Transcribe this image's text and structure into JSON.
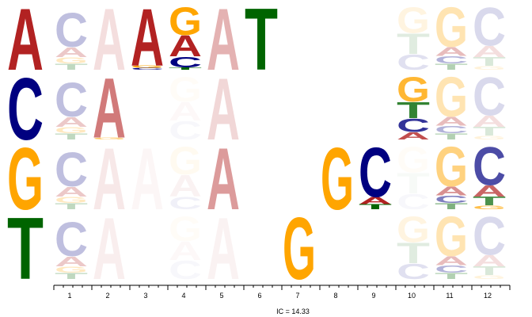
{
  "colors": {
    "A": "#b22222",
    "C": "#000080",
    "G": "#ffa500",
    "T": "#006400",
    "axis": "#000000",
    "background": "#ffffff"
  },
  "chart_data": {
    "type": "sequence-logo",
    "x_ticks": [
      "1",
      "2",
      "3",
      "4",
      "5",
      "6",
      "7",
      "8",
      "9",
      "10",
      "11",
      "12"
    ],
    "ic_label": "IC = 14.33",
    "row_letters": [
      "A",
      "C",
      "G",
      "T"
    ],
    "stacks": [
      [
        [
          {
            "letter": "A",
            "height": 1.0,
            "opacity": 1.0
          }
        ],
        [
          {
            "letter": "C",
            "height": 1.0,
            "opacity": 1.0
          }
        ],
        [
          {
            "letter": "G",
            "height": 1.0,
            "opacity": 1.0
          }
        ],
        [
          {
            "letter": "T",
            "height": 1.0,
            "opacity": 1.0
          }
        ]
      ],
      [
        [
          {
            "letter": "T",
            "height": 0.1,
            "opacity": 0.25
          },
          {
            "letter": "G",
            "height": 0.1,
            "opacity": 0.25
          },
          {
            "letter": "A",
            "height": 0.16,
            "opacity": 0.25
          },
          {
            "letter": "C",
            "height": 0.55,
            "opacity": 0.25
          }
        ],
        [
          {
            "letter": "T",
            "height": 0.1,
            "opacity": 0.25
          },
          {
            "letter": "G",
            "height": 0.1,
            "opacity": 0.25
          },
          {
            "letter": "A",
            "height": 0.16,
            "opacity": 0.25
          },
          {
            "letter": "C",
            "height": 0.55,
            "opacity": 0.25
          }
        ],
        [
          {
            "letter": "T",
            "height": 0.1,
            "opacity": 0.25
          },
          {
            "letter": "G",
            "height": 0.1,
            "opacity": 0.25
          },
          {
            "letter": "A",
            "height": 0.16,
            "opacity": 0.25
          },
          {
            "letter": "C",
            "height": 0.55,
            "opacity": 0.25
          }
        ],
        [
          {
            "letter": "T",
            "height": 0.1,
            "opacity": 0.25
          },
          {
            "letter": "G",
            "height": 0.1,
            "opacity": 0.25
          },
          {
            "letter": "A",
            "height": 0.16,
            "opacity": 0.25
          },
          {
            "letter": "C",
            "height": 0.55,
            "opacity": 0.25
          }
        ]
      ],
      [
        [
          {
            "letter": "A",
            "height": 1.0,
            "opacity": 0.15
          }
        ],
        [
          {
            "letter": "G",
            "height": 0.03,
            "opacity": 0.6
          },
          {
            "letter": "A",
            "height": 0.97,
            "opacity": 0.6
          }
        ],
        [
          {
            "letter": "A",
            "height": 1.0,
            "opacity": 0.1
          }
        ],
        [
          {
            "letter": "A",
            "height": 1.0,
            "opacity": 0.08
          }
        ]
      ],
      [
        [
          {
            "letter": "C",
            "height": 0.03,
            "opacity": 1.0
          },
          {
            "letter": "G",
            "height": 0.04,
            "opacity": 1.0
          },
          {
            "letter": "A",
            "height": 0.93,
            "opacity": 1.0
          }
        ],
        [],
        [
          {
            "letter": "A",
            "height": 1.0,
            "opacity": 0.04
          }
        ],
        []
      ],
      [
        [
          {
            "letter": "T",
            "height": 0.04,
            "opacity": 1.0
          },
          {
            "letter": "C",
            "height": 0.17,
            "opacity": 1.0
          },
          {
            "letter": "A",
            "height": 0.34,
            "opacity": 1.0
          },
          {
            "letter": "G",
            "height": 0.45,
            "opacity": 1.0
          }
        ],
        [
          {
            "letter": "C",
            "height": 0.3,
            "opacity": 0.03
          },
          {
            "letter": "A",
            "height": 0.3,
            "opacity": 0.03
          },
          {
            "letter": "G",
            "height": 0.4,
            "opacity": 0.03
          }
        ],
        [
          {
            "letter": "C",
            "height": 0.2,
            "opacity": 0.06
          },
          {
            "letter": "A",
            "height": 0.35,
            "opacity": 0.06
          },
          {
            "letter": "G",
            "height": 0.45,
            "opacity": 0.06
          }
        ],
        [
          {
            "letter": "C",
            "height": 0.3,
            "opacity": 0.03
          },
          {
            "letter": "A",
            "height": 0.3,
            "opacity": 0.03
          },
          {
            "letter": "G",
            "height": 0.4,
            "opacity": 0.03
          }
        ]
      ],
      [
        [
          {
            "letter": "A",
            "height": 1.0,
            "opacity": 0.35
          }
        ],
        [
          {
            "letter": "A",
            "height": 1.0,
            "opacity": 0.18
          }
        ],
        [
          {
            "letter": "A",
            "height": 1.0,
            "opacity": 0.45
          }
        ],
        [
          {
            "letter": "A",
            "height": 1.0,
            "opacity": 0.06
          }
        ]
      ],
      [
        [
          {
            "letter": "T",
            "height": 1.0,
            "opacity": 1.0
          }
        ],
        [],
        [],
        []
      ],
      [
        [],
        [],
        [],
        [
          {
            "letter": "G",
            "height": 1.0,
            "opacity": 1.0
          }
        ]
      ],
      [
        [],
        [],
        [
          {
            "letter": "G",
            "height": 1.0,
            "opacity": 1.0
          }
        ],
        []
      ],
      [
        [],
        [],
        [
          {
            "letter": "T",
            "height": 0.08,
            "opacity": 1.0
          },
          {
            "letter": "A",
            "height": 0.12,
            "opacity": 1.0
          },
          {
            "letter": "C",
            "height": 0.8,
            "opacity": 1.0
          }
        ],
        []
      ],
      [
        [
          {
            "letter": "C",
            "height": 0.25,
            "opacity": 0.12
          },
          {
            "letter": "T",
            "height": 0.33,
            "opacity": 0.12
          },
          {
            "letter": "G",
            "height": 0.42,
            "opacity": 0.12
          }
        ],
        [
          {
            "letter": "A",
            "height": 0.12,
            "opacity": 0.8
          },
          {
            "letter": "C",
            "height": 0.22,
            "opacity": 0.8
          },
          {
            "letter": "T",
            "height": 0.26,
            "opacity": 0.8
          },
          {
            "letter": "G",
            "height": 0.4,
            "opacity": 0.8
          }
        ],
        [
          {
            "letter": "C",
            "height": 0.25,
            "opacity": 0.03
          },
          {
            "letter": "T",
            "height": 0.33,
            "opacity": 0.03
          },
          {
            "letter": "G",
            "height": 0.42,
            "opacity": 0.03
          }
        ],
        [
          {
            "letter": "C",
            "height": 0.25,
            "opacity": 0.12
          },
          {
            "letter": "T",
            "height": 0.33,
            "opacity": 0.12
          },
          {
            "letter": "G",
            "height": 0.42,
            "opacity": 0.12
          }
        ]
      ],
      [
        [
          {
            "letter": "T",
            "height": 0.1,
            "opacity": 0.3
          },
          {
            "letter": "C",
            "height": 0.12,
            "opacity": 0.3
          },
          {
            "letter": "A",
            "height": 0.14,
            "opacity": 0.3
          },
          {
            "letter": "G",
            "height": 0.64,
            "opacity": 0.3
          }
        ],
        [
          {
            "letter": "T",
            "height": 0.1,
            "opacity": 0.3
          },
          {
            "letter": "C",
            "height": 0.12,
            "opacity": 0.3
          },
          {
            "letter": "A",
            "height": 0.14,
            "opacity": 0.3
          },
          {
            "letter": "G",
            "height": 0.64,
            "opacity": 0.3
          }
        ],
        [
          {
            "letter": "T",
            "height": 0.1,
            "opacity": 0.5
          },
          {
            "letter": "C",
            "height": 0.12,
            "opacity": 0.5
          },
          {
            "letter": "A",
            "height": 0.14,
            "opacity": 0.5
          },
          {
            "letter": "G",
            "height": 0.64,
            "opacity": 0.5
          }
        ],
        [
          {
            "letter": "T",
            "height": 0.1,
            "opacity": 0.3
          },
          {
            "letter": "C",
            "height": 0.12,
            "opacity": 0.3
          },
          {
            "letter": "A",
            "height": 0.14,
            "opacity": 0.3
          },
          {
            "letter": "G",
            "height": 0.64,
            "opacity": 0.3
          }
        ]
      ],
      [
        [
          {
            "letter": "G",
            "height": 0.06,
            "opacity": 0.15
          },
          {
            "letter": "T",
            "height": 0.14,
            "opacity": 0.15
          },
          {
            "letter": "A",
            "height": 0.18,
            "opacity": 0.15
          },
          {
            "letter": "C",
            "height": 0.62,
            "opacity": 0.15
          }
        ],
        [
          {
            "letter": "G",
            "height": 0.06,
            "opacity": 0.15
          },
          {
            "letter": "T",
            "height": 0.14,
            "opacity": 0.15
          },
          {
            "letter": "A",
            "height": 0.18,
            "opacity": 0.15
          },
          {
            "letter": "C",
            "height": 0.62,
            "opacity": 0.15
          }
        ],
        [
          {
            "letter": "G",
            "height": 0.06,
            "opacity": 0.7
          },
          {
            "letter": "T",
            "height": 0.14,
            "opacity": 0.7
          },
          {
            "letter": "A",
            "height": 0.18,
            "opacity": 0.7
          },
          {
            "letter": "C",
            "height": 0.62,
            "opacity": 0.7
          }
        ],
        [
          {
            "letter": "G",
            "height": 0.06,
            "opacity": 0.15
          },
          {
            "letter": "T",
            "height": 0.14,
            "opacity": 0.15
          },
          {
            "letter": "A",
            "height": 0.18,
            "opacity": 0.15
          },
          {
            "letter": "C",
            "height": 0.62,
            "opacity": 0.15
          }
        ]
      ]
    ]
  }
}
